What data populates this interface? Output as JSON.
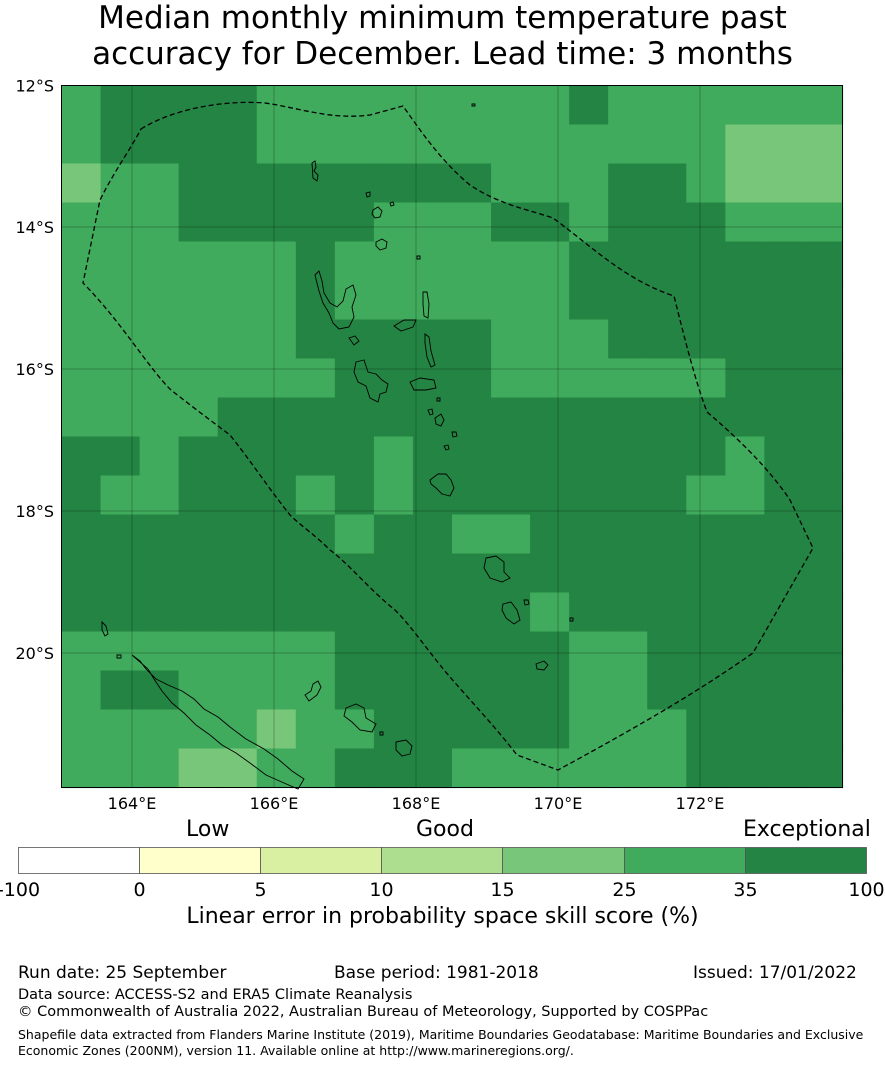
{
  "title": {
    "line1": "Median monthly minimum temperature past",
    "line2": "accuracy for December. Lead time: 3 months"
  },
  "map": {
    "lat_labels": [
      "12°S",
      "14°S",
      "16°S",
      "18°S",
      "20°S"
    ],
    "lon_labels": [
      "164°E",
      "166°E",
      "168°E",
      "170°E",
      "172°E"
    ],
    "colors": {
      "c0": "#ffffff",
      "c1": "#ffffcc",
      "c2": "#d9f0a3",
      "c3": "#addd8e",
      "c4": "#78c679",
      "c5": "#41ab5d",
      "c6": "#238443"
    }
  },
  "colorbar": {
    "categories": [
      "Low",
      "Good",
      "Exceptional"
    ],
    "ticks": [
      "-100",
      "0",
      "5",
      "10",
      "15",
      "25",
      "35",
      "100"
    ],
    "label": "Linear error in probability space skill score (%)"
  },
  "footer": {
    "run_date": "Run date: 25 September",
    "base_period": "Base period: 1981-2018",
    "issued": "Issued: 17/01/2022",
    "data_source": "Data source: ACCESS-S2 and ERA5 Climate Reanalysis",
    "copyright": "© Commonwealth of Australia 2022, Australian Bureau of Meteorology, Supported by COSPPac",
    "shapefile": "Shapefile data extracted from Flanders Marine Institute (2019), Maritime Boundaries Geodatabase: Maritime Boundaries and Exclusive Economic Zones (200NM), version 11. Available online at http://www.marineregions.org/."
  }
}
